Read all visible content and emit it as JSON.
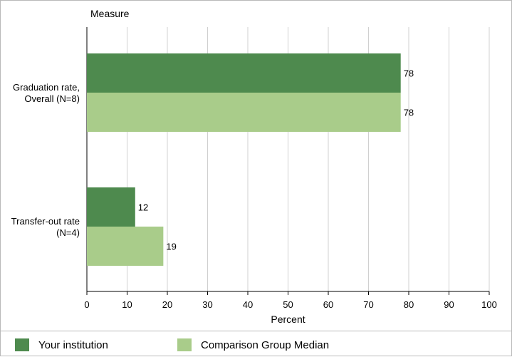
{
  "colors": {
    "your_institution": "#4e8a4e",
    "comparison": "#a9cc8a",
    "grid": "#d0d0d0",
    "axis": "#000000"
  },
  "chart_data": {
    "type": "bar",
    "orientation": "horizontal",
    "categories": [
      "Graduation rate, Overall (N=8)",
      "Transfer-out rate (N=4)"
    ],
    "category_label_lines": [
      [
        "Graduation rate,",
        "Overall (N=8)"
      ],
      [
        "Transfer-out rate",
        "(N=4)"
      ]
    ],
    "series": [
      {
        "name": "Your institution",
        "values": [
          78,
          12
        ]
      },
      {
        "name": "Comparison Group Median",
        "values": [
          78,
          19
        ]
      }
    ],
    "title": "",
    "ylabel": "Measure",
    "xlabel": "Percent",
    "xlim": [
      0,
      100
    ],
    "xticks": [
      0,
      10,
      20,
      30,
      40,
      50,
      60,
      70,
      80,
      90,
      100
    ],
    "grid": true,
    "data_labels": true,
    "legend_position": "bottom"
  }
}
